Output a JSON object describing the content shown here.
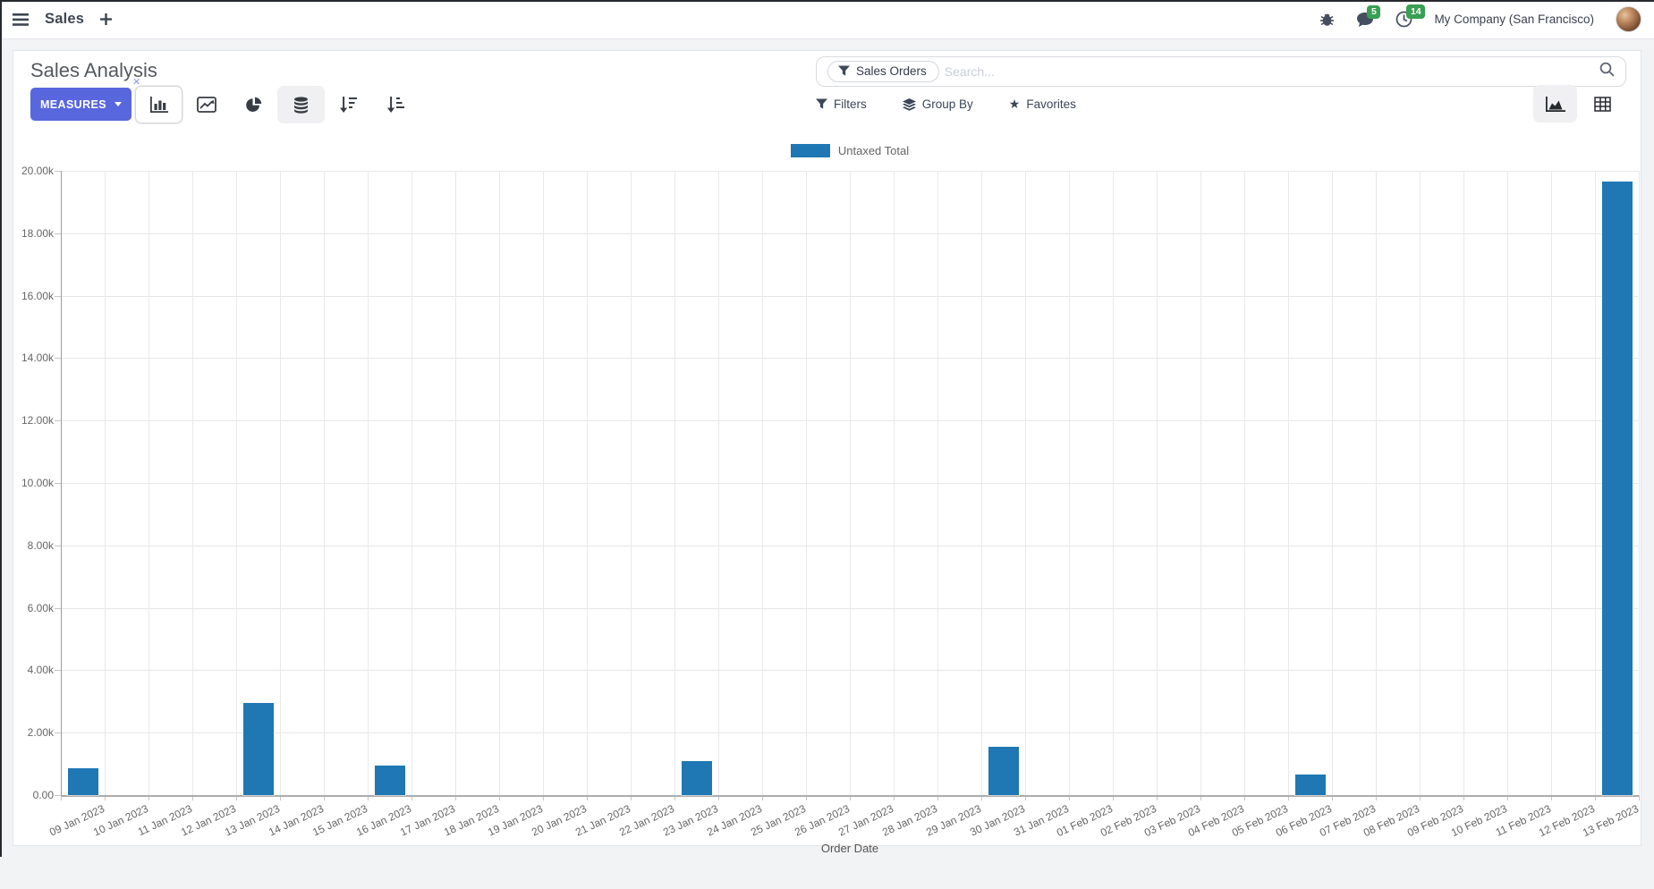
{
  "navbar": {
    "app_menu": "Sales",
    "company": "My Company (San Francisco)",
    "messages_badge": "5",
    "activities_badge": "14"
  },
  "control_panel": {
    "title": "Sales Analysis",
    "measures_button": "MEASURES",
    "search": {
      "facet": "Sales Orders",
      "placeholder": "Search...",
      "remove_symbol": "✕"
    },
    "filters_label": "Filters",
    "group_by_label": "Group By",
    "favorites_label": "Favorites"
  },
  "chart_data": {
    "type": "bar",
    "title": "",
    "xlabel": "Order Date",
    "ylabel": "",
    "ylim": [
      0,
      20000
    ],
    "ytick_step": 2000,
    "ytick_labels": [
      "0.00",
      "2.00k",
      "4.00k",
      "6.00k",
      "8.00k",
      "10.00k",
      "12.00k",
      "14.00k",
      "16.00k",
      "18.00k",
      "20.00k"
    ],
    "grid": true,
    "legend_position": "top",
    "categories": [
      "09 Jan 2023",
      "10 Jan 2023",
      "11 Jan 2023",
      "12 Jan 2023",
      "13 Jan 2023",
      "14 Jan 2023",
      "15 Jan 2023",
      "16 Jan 2023",
      "17 Jan 2023",
      "18 Jan 2023",
      "19 Jan 2023",
      "20 Jan 2023",
      "21 Jan 2023",
      "22 Jan 2023",
      "23 Jan 2023",
      "24 Jan 2023",
      "25 Jan 2023",
      "26 Jan 2023",
      "27 Jan 2023",
      "28 Jan 2023",
      "29 Jan 2023",
      "30 Jan 2023",
      "31 Jan 2023",
      "01 Feb 2023",
      "02 Feb 2023",
      "03 Feb 2023",
      "04 Feb 2023",
      "05 Feb 2023",
      "06 Feb 2023",
      "07 Feb 2023",
      "08 Feb 2023",
      "09 Feb 2023",
      "10 Feb 2023",
      "11 Feb 2023",
      "12 Feb 2023",
      "13 Feb 2023"
    ],
    "series": [
      {
        "name": "Untaxed Total",
        "color": "#1f77b4",
        "values": [
          850,
          0,
          0,
          0,
          2950,
          0,
          0,
          950,
          0,
          0,
          0,
          0,
          0,
          0,
          1090,
          0,
          0,
          0,
          0,
          0,
          0,
          1550,
          0,
          0,
          0,
          0,
          0,
          0,
          670,
          0,
          0,
          0,
          0,
          0,
          0,
          19650
        ]
      }
    ]
  },
  "colors": {
    "primary_button": "#5867dd",
    "bar": "#1f77b4",
    "badge_green": "#38a052"
  }
}
